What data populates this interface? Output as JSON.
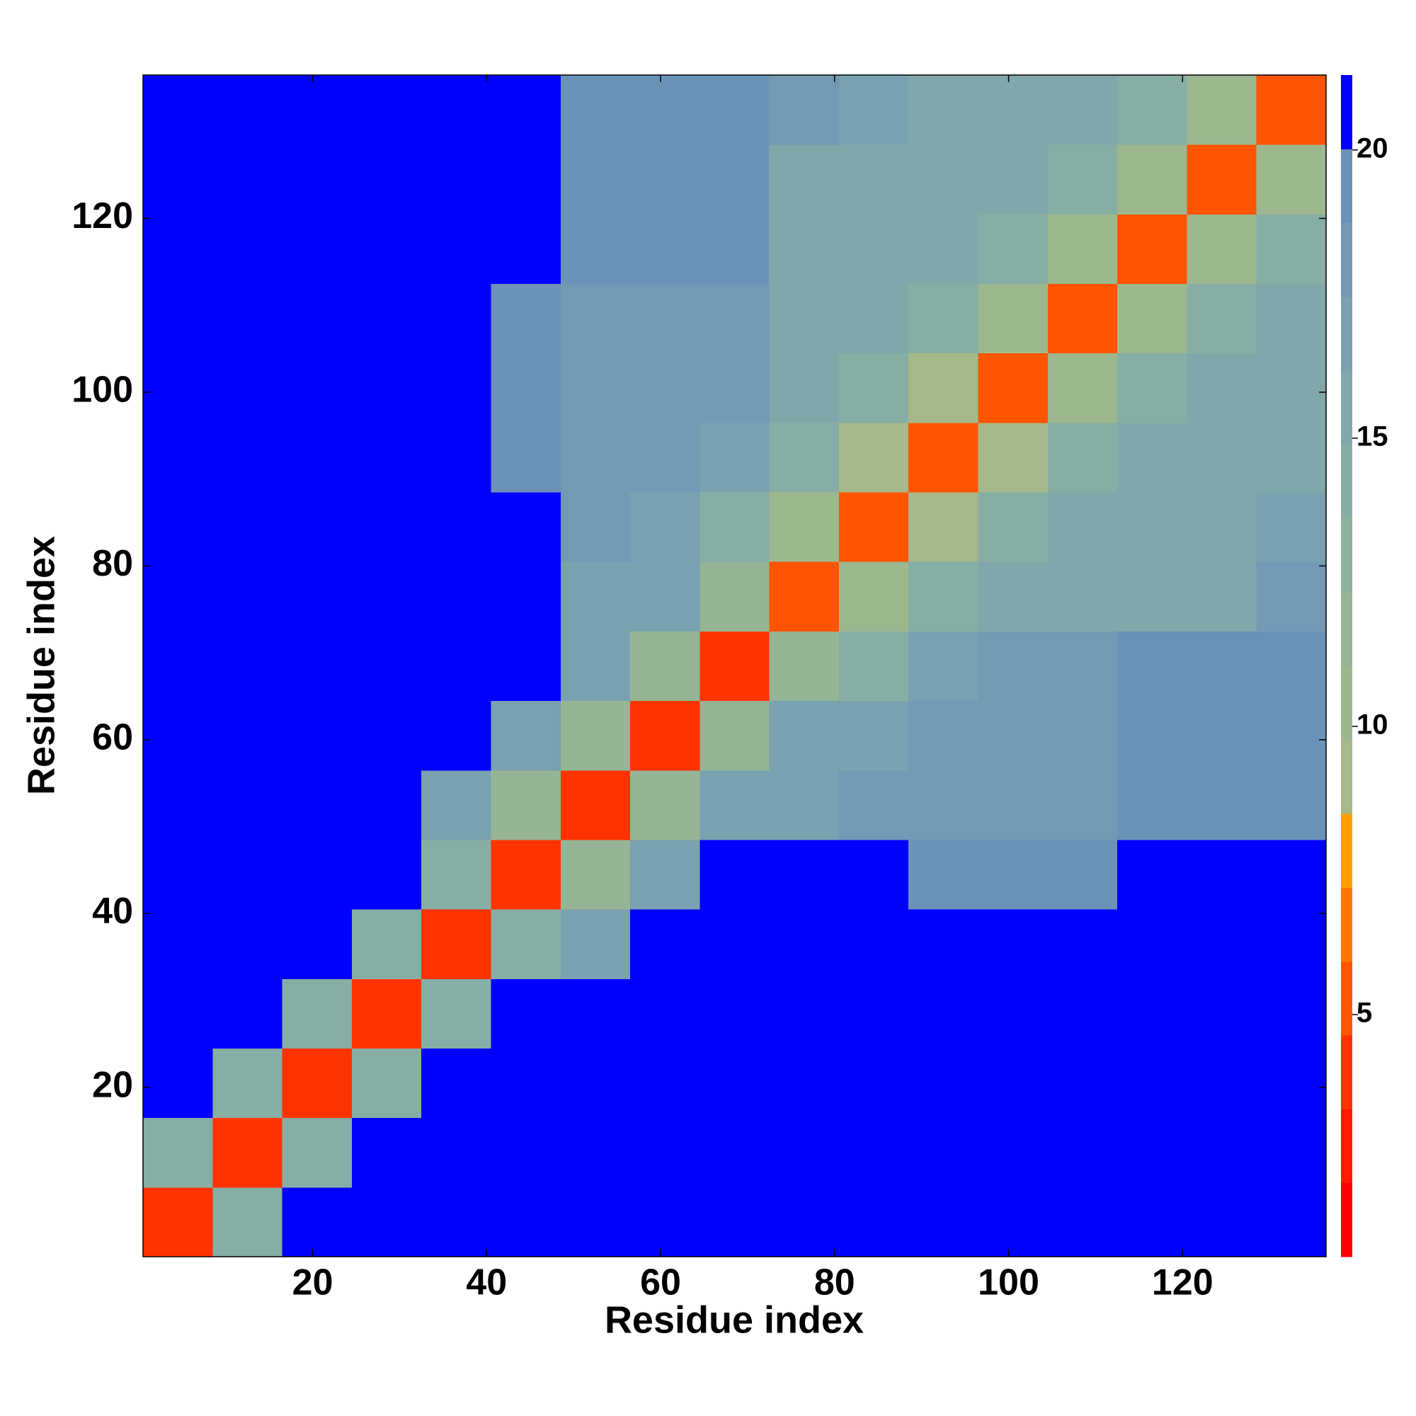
{
  "chart_data": {
    "type": "heatmap",
    "xlabel": "Residue index",
    "ylabel": "Residue index",
    "xbins": [
      0.5,
      8.5,
      16.5,
      24.5,
      32.5,
      40.5,
      48.5,
      56.5,
      64.5,
      72.5,
      80.5,
      88.5,
      96.5,
      104.5,
      112.5,
      120.5,
      128.5,
      136.5
    ],
    "ybins": [
      0.5,
      8.5,
      16.5,
      24.5,
      32.5,
      40.5,
      48.5,
      56.5,
      64.5,
      72.5,
      80.5,
      88.5,
      96.5,
      104.5,
      112.5,
      120.5,
      128.5,
      136.5
    ],
    "xlim": [
      0.5,
      136.5
    ],
    "ylim": [
      0.5,
      136.5
    ],
    "xticks": [
      20,
      40,
      60,
      80,
      100,
      120
    ],
    "yticks": [
      20,
      40,
      60,
      80,
      100,
      120
    ],
    "z": [
      [
        4,
        14,
        21,
        21,
        21,
        21,
        21,
        21,
        21,
        21,
        21,
        21,
        21,
        21,
        21,
        21,
        21
      ],
      [
        14,
        4,
        14,
        21,
        21,
        21,
        21,
        21,
        21,
        21,
        21,
        21,
        21,
        21,
        21,
        21,
        21
      ],
      [
        21,
        14,
        4,
        14,
        21,
        21,
        21,
        21,
        21,
        21,
        21,
        21,
        21,
        21,
        21,
        21,
        21
      ],
      [
        21,
        21,
        14,
        4,
        14,
        21,
        21,
        21,
        21,
        21,
        21,
        21,
        21,
        21,
        21,
        21,
        21
      ],
      [
        21,
        21,
        21,
        14,
        4,
        14,
        17,
        21,
        21,
        21,
        21,
        21,
        21,
        21,
        21,
        21,
        21
      ],
      [
        21,
        21,
        21,
        21,
        14,
        4,
        12,
        17,
        21,
        21,
        21,
        20,
        20,
        20,
        21,
        21,
        21
      ],
      [
        21,
        21,
        21,
        21,
        17,
        12,
        4,
        12,
        17,
        17,
        18,
        18,
        18,
        18,
        19,
        19,
        19
      ],
      [
        21,
        21,
        21,
        21,
        21,
        17,
        12,
        4,
        12,
        17,
        17,
        18,
        18,
        18,
        19,
        19,
        19
      ],
      [
        21,
        21,
        21,
        21,
        21,
        21,
        17,
        12,
        4,
        12,
        14,
        17,
        18,
        18,
        19,
        19,
        19
      ],
      [
        21,
        21,
        21,
        21,
        21,
        21,
        17,
        17,
        12,
        5,
        11,
        14,
        16,
        16,
        16,
        16,
        18
      ],
      [
        21,
        21,
        21,
        21,
        21,
        21,
        18,
        17,
        14,
        11,
        5,
        9,
        14,
        16,
        16,
        16,
        17
      ],
      [
        21,
        21,
        21,
        21,
        21,
        20,
        18,
        18,
        17,
        14,
        9,
        5,
        9,
        14,
        16,
        16,
        16
      ],
      [
        21,
        21,
        21,
        21,
        21,
        20,
        18,
        18,
        18,
        16,
        14,
        9,
        5,
        11,
        14,
        16,
        16
      ],
      [
        21,
        21,
        21,
        21,
        21,
        20,
        18,
        18,
        18,
        16,
        16,
        14,
        11,
        5,
        11,
        14,
        16
      ],
      [
        21,
        21,
        21,
        21,
        21,
        21,
        19,
        19,
        19,
        16,
        16,
        16,
        14,
        11,
        5,
        11,
        14
      ],
      [
        21,
        21,
        21,
        21,
        21,
        21,
        19,
        19,
        19,
        16,
        16,
        16,
        16,
        14,
        11,
        5,
        11
      ],
      [
        21,
        21,
        21,
        21,
        21,
        21,
        19,
        19,
        19,
        18,
        17,
        16,
        16,
        16,
        14,
        11,
        5
      ]
    ],
    "colorbar": {
      "lim": [
        0.8,
        21.3
      ],
      "ticks": [
        5,
        10,
        15,
        20
      ],
      "colors": [
        "#ff0000",
        "#ff1a00",
        "#ff3300",
        "#ff5500",
        "#ff7700",
        "#ffa000",
        "#a6b98a",
        "#9db88f",
        "#96b596",
        "#8fb29d",
        "#87aea5",
        "#80a8aa",
        "#79a1b0",
        "#7399b4",
        "#6b93b8",
        "#0000ff"
      ]
    }
  }
}
